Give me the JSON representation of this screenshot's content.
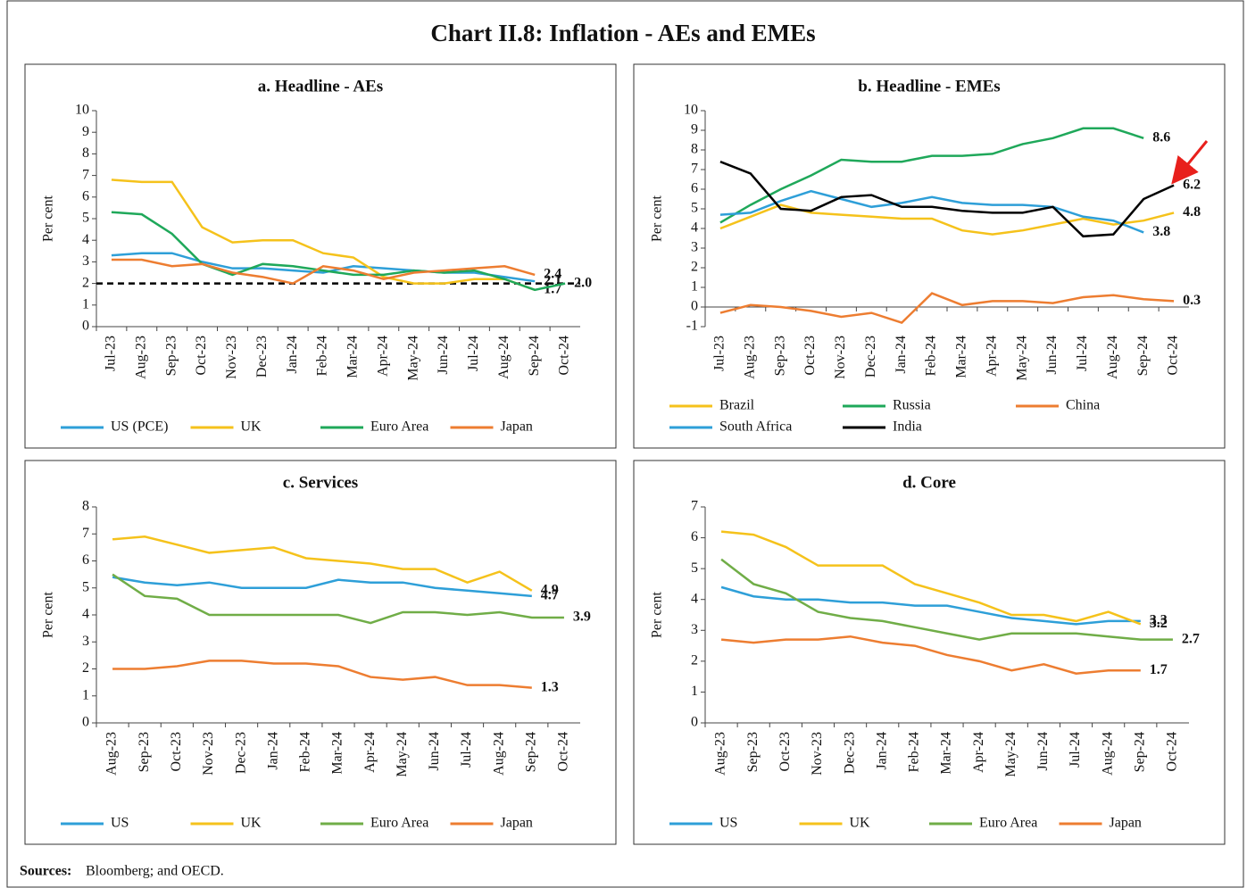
{
  "title": "Chart II.8: Inflation - AEs and EMEs",
  "sources": {
    "label": "Sources:",
    "text": "Bloomberg; and OECD."
  },
  "chart_data": [
    {
      "type": "line",
      "title": "a. Headline - AEs",
      "ylabel": "Per cent",
      "categories": [
        "Jul-23",
        "Aug-23",
        "Sep-23",
        "Oct-23",
        "Nov-23",
        "Dec-23",
        "Jan-24",
        "Feb-24",
        "Mar-24",
        "Apr-24",
        "May-24",
        "Jun-24",
        "Jul-24",
        "Aug-24",
        "Sep-24",
        "Oct-24"
      ],
      "ylim": [
        0,
        10
      ],
      "yticks": [
        0,
        1,
        2,
        3,
        4,
        5,
        6,
        7,
        8,
        9,
        10
      ],
      "reference_line": 2,
      "series": [
        {
          "name": "US (PCE)",
          "color": "#2e9fd8",
          "values": [
            3.3,
            3.4,
            3.4,
            3.0,
            2.7,
            2.7,
            2.6,
            2.5,
            2.8,
            2.7,
            2.6,
            2.5,
            2.5,
            2.3,
            2.1,
            null
          ],
          "value_labels": [
            null,
            null,
            null,
            null,
            null,
            null,
            null,
            null,
            null,
            null,
            null,
            null,
            null,
            null,
            "2.1",
            null
          ]
        },
        {
          "name": "UK",
          "color": "#f5c21b",
          "values": [
            6.8,
            6.7,
            6.7,
            4.6,
            3.9,
            4.0,
            4.0,
            3.4,
            3.2,
            2.3,
            2.0,
            2.0,
            2.2,
            2.2,
            1.7,
            null
          ],
          "value_labels": [
            null,
            null,
            null,
            null,
            null,
            null,
            null,
            null,
            null,
            null,
            null,
            null,
            null,
            null,
            "1.7",
            null
          ]
        },
        {
          "name": "Euro Area",
          "color": "#1fa85a",
          "values": [
            5.3,
            5.2,
            4.3,
            2.9,
            2.4,
            2.9,
            2.8,
            2.6,
            2.4,
            2.4,
            2.6,
            2.5,
            2.6,
            2.2,
            1.7,
            2.0
          ],
          "value_labels": [
            null,
            null,
            null,
            null,
            null,
            null,
            null,
            null,
            null,
            null,
            null,
            null,
            null,
            null,
            null,
            "2.0"
          ]
        },
        {
          "name": "Japan",
          "color": "#ed7d31",
          "values": [
            3.1,
            3.1,
            2.8,
            2.9,
            2.5,
            2.3,
            2.0,
            2.8,
            2.6,
            2.2,
            2.5,
            2.6,
            2.7,
            2.8,
            2.4,
            null
          ],
          "value_labels": [
            null,
            null,
            null,
            null,
            null,
            null,
            null,
            null,
            null,
            null,
            null,
            null,
            null,
            null,
            "2.4",
            null
          ]
        }
      ]
    },
    {
      "type": "line",
      "title": "b. Headline - EMEs",
      "ylabel": "Per cent",
      "categories": [
        "Jul-23",
        "Aug-23",
        "Sep-23",
        "Oct-23",
        "Nov-23",
        "Dec-23",
        "Jan-24",
        "Feb-24",
        "Mar-24",
        "Apr-24",
        "May-24",
        "Jun-24",
        "Jul-24",
        "Aug-24",
        "Sep-24",
        "Oct-24"
      ],
      "ylim": [
        -1,
        10
      ],
      "yticks": [
        -1,
        0,
        1,
        2,
        3,
        4,
        5,
        6,
        7,
        8,
        9,
        10
      ],
      "series": [
        {
          "name": "Brazil",
          "color": "#f5c21b",
          "values": [
            4.0,
            4.6,
            5.2,
            4.8,
            4.7,
            4.6,
            4.5,
            4.5,
            3.9,
            3.7,
            3.9,
            4.2,
            4.5,
            4.2,
            4.4,
            4.8
          ],
          "value_labels": [
            null,
            null,
            null,
            null,
            null,
            null,
            null,
            null,
            null,
            null,
            null,
            null,
            null,
            null,
            null,
            "4.8"
          ]
        },
        {
          "name": "Russia",
          "color": "#1fa85a",
          "values": [
            4.3,
            5.2,
            6.0,
            6.7,
            7.5,
            7.4,
            7.4,
            7.7,
            7.7,
            7.8,
            8.3,
            8.6,
            9.1,
            9.1,
            8.6,
            null
          ],
          "value_labels": [
            null,
            null,
            null,
            null,
            null,
            null,
            null,
            null,
            null,
            null,
            null,
            null,
            null,
            null,
            "8.6",
            null
          ]
        },
        {
          "name": "China",
          "color": "#ed7d31",
          "values": [
            -0.3,
            0.1,
            0.0,
            -0.2,
            -0.5,
            -0.3,
            -0.8,
            0.7,
            0.1,
            0.3,
            0.3,
            0.2,
            0.5,
            0.6,
            0.4,
            0.3
          ],
          "value_labels": [
            null,
            null,
            null,
            null,
            null,
            null,
            null,
            null,
            null,
            null,
            null,
            null,
            null,
            null,
            null,
            "0.3"
          ]
        },
        {
          "name": "South Africa",
          "color": "#2e9fd8",
          "values": [
            4.7,
            4.8,
            5.4,
            5.9,
            5.5,
            5.1,
            5.3,
            5.6,
            5.3,
            5.2,
            5.2,
            5.1,
            4.6,
            4.4,
            3.8,
            null
          ],
          "value_labels": [
            null,
            null,
            null,
            null,
            null,
            null,
            null,
            null,
            null,
            null,
            null,
            null,
            null,
            null,
            "3.8",
            null
          ]
        },
        {
          "name": "India",
          "color": "#000000",
          "values": [
            7.4,
            6.8,
            5.0,
            4.9,
            5.6,
            5.7,
            5.1,
            5.1,
            4.9,
            4.8,
            4.8,
            5.1,
            3.6,
            3.7,
            5.5,
            6.2
          ],
          "value_labels": [
            null,
            null,
            null,
            null,
            null,
            null,
            null,
            null,
            null,
            null,
            null,
            null,
            null,
            null,
            null,
            "6.2"
          ]
        }
      ]
    },
    {
      "type": "line",
      "title": "c. Services",
      "ylabel": "Per cent",
      "categories": [
        "Aug-23",
        "Sep-23",
        "Oct-23",
        "Nov-23",
        "Dec-23",
        "Jan-24",
        "Feb-24",
        "Mar-24",
        "Apr-24",
        "May-24",
        "Jun-24",
        "Jul-24",
        "Aug-24",
        "Sep-24",
        "Oct-24"
      ],
      "ylim": [
        0,
        8
      ],
      "yticks": [
        0,
        1,
        2,
        3,
        4,
        5,
        6,
        7,
        8
      ],
      "series": [
        {
          "name": "US",
          "color": "#2e9fd8",
          "values": [
            5.4,
            5.2,
            5.1,
            5.2,
            5.0,
            5.0,
            5.0,
            5.3,
            5.2,
            5.2,
            5.0,
            4.9,
            4.8,
            4.7,
            null
          ],
          "value_labels": [
            null,
            null,
            null,
            null,
            null,
            null,
            null,
            null,
            null,
            null,
            null,
            null,
            null,
            "4.7",
            null
          ]
        },
        {
          "name": "UK",
          "color": "#f5c21b",
          "values": [
            6.8,
            6.9,
            6.6,
            6.3,
            6.4,
            6.5,
            6.1,
            6.0,
            5.9,
            5.7,
            5.7,
            5.2,
            5.6,
            4.9,
            null
          ],
          "value_labels": [
            null,
            null,
            null,
            null,
            null,
            null,
            null,
            null,
            null,
            null,
            null,
            null,
            null,
            "4.9",
            null
          ]
        },
        {
          "name": "Euro Area",
          "color": "#70ad47",
          "values": [
            5.5,
            4.7,
            4.6,
            4.0,
            4.0,
            4.0,
            4.0,
            4.0,
            3.7,
            4.1,
            4.1,
            4.0,
            4.1,
            3.9,
            3.9
          ],
          "value_labels": [
            null,
            null,
            null,
            null,
            null,
            null,
            null,
            null,
            null,
            null,
            null,
            null,
            null,
            null,
            "3.9"
          ]
        },
        {
          "name": "Japan",
          "color": "#ed7d31",
          "values": [
            2.0,
            2.0,
            2.1,
            2.3,
            2.3,
            2.2,
            2.2,
            2.1,
            1.7,
            1.6,
            1.7,
            1.4,
            1.4,
            1.3,
            null
          ],
          "value_labels": [
            null,
            null,
            null,
            null,
            null,
            null,
            null,
            null,
            null,
            null,
            null,
            null,
            null,
            "1.3",
            null
          ]
        }
      ]
    },
    {
      "type": "line",
      "title": "d. Core",
      "ylabel": "Per cent",
      "categories": [
        "Aug-23",
        "Sep-23",
        "Oct-23",
        "Nov-23",
        "Dec-23",
        "Jan-24",
        "Feb-24",
        "Mar-24",
        "Apr-24",
        "May-24",
        "Jun-24",
        "Jul-24",
        "Aug-24",
        "Sep-24",
        "Oct-24"
      ],
      "ylim": [
        0,
        7
      ],
      "yticks": [
        0,
        1,
        2,
        3,
        4,
        5,
        6,
        7
      ],
      "series": [
        {
          "name": "US",
          "color": "#2e9fd8",
          "values": [
            4.4,
            4.1,
            4.0,
            4.0,
            3.9,
            3.9,
            3.8,
            3.8,
            3.6,
            3.4,
            3.3,
            3.2,
            3.3,
            3.3,
            null
          ],
          "value_labels": [
            null,
            null,
            null,
            null,
            null,
            null,
            null,
            null,
            null,
            null,
            null,
            null,
            null,
            "3.3",
            null
          ]
        },
        {
          "name": "UK",
          "color": "#f5c21b",
          "values": [
            6.2,
            6.1,
            5.7,
            5.1,
            5.1,
            5.1,
            4.5,
            4.2,
            3.9,
            3.5,
            3.5,
            3.3,
            3.6,
            3.2,
            null
          ],
          "value_labels": [
            null,
            null,
            null,
            null,
            null,
            null,
            null,
            null,
            null,
            null,
            null,
            null,
            null,
            "3.2",
            null
          ]
        },
        {
          "name": "Euro Area",
          "color": "#70ad47",
          "values": [
            5.3,
            4.5,
            4.2,
            3.6,
            3.4,
            3.3,
            3.1,
            2.9,
            2.7,
            2.9,
            2.9,
            2.9,
            2.8,
            2.7,
            2.7
          ],
          "value_labels": [
            null,
            null,
            null,
            null,
            null,
            null,
            null,
            null,
            null,
            null,
            null,
            null,
            null,
            null,
            "2.7"
          ]
        },
        {
          "name": "Japan",
          "color": "#ed7d31",
          "values": [
            2.7,
            2.6,
            2.7,
            2.7,
            2.8,
            2.6,
            2.5,
            2.2,
            2.0,
            1.7,
            1.9,
            1.6,
            1.7,
            1.7,
            null
          ],
          "value_labels": [
            null,
            null,
            null,
            null,
            null,
            null,
            null,
            null,
            null,
            null,
            null,
            null,
            null,
            "1.7",
            null
          ]
        }
      ]
    }
  ]
}
